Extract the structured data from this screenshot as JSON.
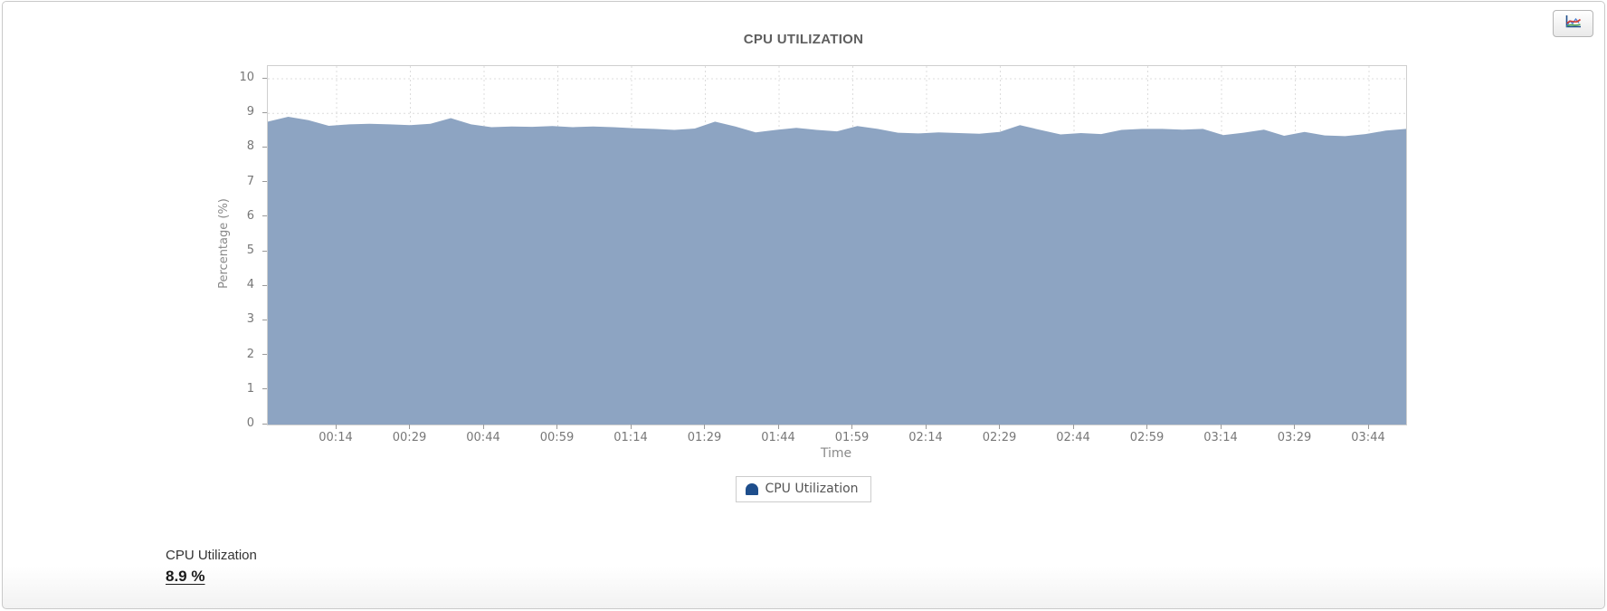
{
  "chart_data": {
    "type": "area",
    "title": "CPU UTILIZATION",
    "xlabel": "Time",
    "ylabel": "Percentage (%)",
    "ylim": [
      0,
      10
    ],
    "y_ticks": [
      0,
      1,
      2,
      3,
      4,
      5,
      6,
      7,
      8,
      9,
      10
    ],
    "x_tick_labels": [
      "00:14",
      "00:29",
      "00:44",
      "00:59",
      "01:14",
      "01:29",
      "01:44",
      "01:59",
      "02:14",
      "02:29",
      "02:44",
      "02:59",
      "03:14",
      "03:29",
      "03:44"
    ],
    "grid": true,
    "legend_position": "bottom",
    "series": [
      {
        "name": "CPU Utilization",
        "fill_color": "#8da4c2",
        "values": [
          8.76,
          8.9,
          8.8,
          8.64,
          8.68,
          8.7,
          8.68,
          8.66,
          8.7,
          8.86,
          8.68,
          8.6,
          8.62,
          8.61,
          8.63,
          8.6,
          8.62,
          8.6,
          8.57,
          8.55,
          8.52,
          8.56,
          8.76,
          8.62,
          8.45,
          8.52,
          8.58,
          8.52,
          8.48,
          8.63,
          8.55,
          8.44,
          8.42,
          8.45,
          8.43,
          8.41,
          8.46,
          8.66,
          8.52,
          8.39,
          8.43,
          8.4,
          8.52,
          8.55,
          8.55,
          8.53,
          8.55,
          8.37,
          8.44,
          8.53,
          8.35,
          8.46,
          8.36,
          8.34,
          8.4,
          8.5,
          8.55
        ]
      }
    ]
  },
  "legend": {
    "label": "CPU Utilization",
    "marker_color": "#1e4e8c"
  },
  "summary": {
    "label": "CPU Utilization",
    "value": "8.9 %"
  },
  "colors": {
    "area_fill": "#8da4c2",
    "legend_marker": "#1e4e8c",
    "grid_line": "#dcdcdc",
    "axis_text": "#777777",
    "title_text": "#5e5e5e",
    "card_border": "#c9c9c9"
  }
}
